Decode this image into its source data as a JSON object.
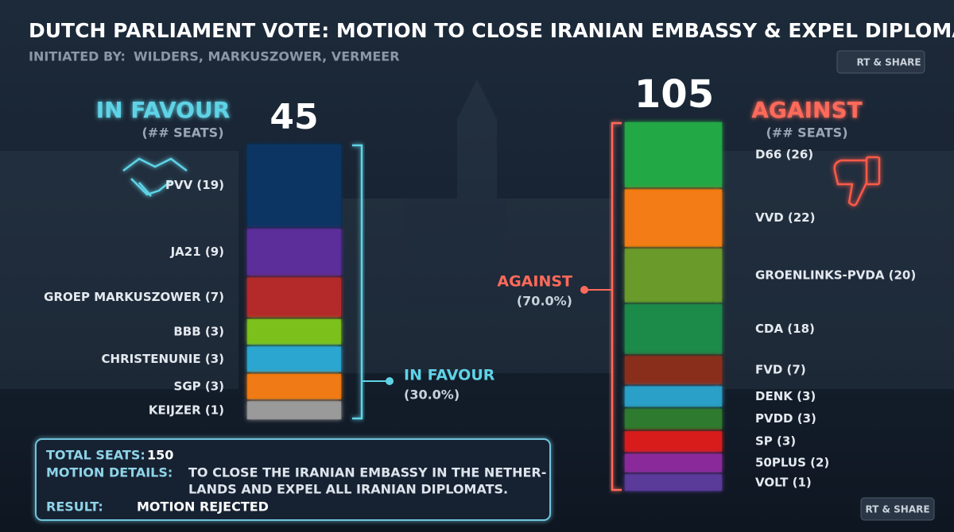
{
  "header": {
    "title": "DUTCH PARLIAMENT VOTE: MOTION TO CLOSE IRANIAN EMBASSY & EXPEL DIPLOMATS",
    "subtitle_label": "INITIATED BY:",
    "subtitle": "WILDERS, MARKUSZOWER, VERMEER",
    "share": "RT & SHARE"
  },
  "chart_data": {
    "type": "stacked-bar",
    "sides": [
      {
        "heading": "IN FAVOUR",
        "subheading": "(## SEATS)",
        "total": 45,
        "bracket_label": "IN FAVOUR",
        "bracket_share": "(30.0%)",
        "categories": [
          "PVV",
          "JA21",
          "GROEP MARKUSZOWER",
          "BBB",
          "CHRISTENUNIE",
          "SGP",
          "KEIJZER"
        ],
        "values": [
          19,
          9,
          7,
          3,
          3,
          3,
          1
        ],
        "value_labels": [
          "PVV (19)",
          "JA21 (9)",
          "GROEP MARKUSZOWER (7)",
          "BBB (3)",
          "CHRISTENUNIE (3)",
          "SGP (3)",
          "KEIJZER (1)"
        ],
        "colors": [
          "#0c3563",
          "#5b2d9a",
          "#b42a2a",
          "#7cc01f",
          "#2aa6d0",
          "#f07a12",
          "#9a9a9a"
        ]
      },
      {
        "heading": "AGAINST",
        "subheading": "(## SEATS)",
        "total": 105,
        "bracket_label": "AGAINST",
        "bracket_share": "(70.0%)",
        "categories": [
          "D66",
          "VVD",
          "GROENLINKS-PVDA",
          "CDA",
          "FVD",
          "DENK",
          "PVDD",
          "SP",
          "50PLUS",
          "VOLT"
        ],
        "values": [
          26,
          22,
          20,
          18,
          7,
          3,
          3,
          3,
          2,
          1
        ],
        "value_labels": [
          "D66 (26)",
          "VVD (22)",
          "GROENLINKS-PVDA (20)",
          "CDA (18)",
          "FVD (7)",
          "DENK (3)",
          "PVDD (3)",
          "SP (3)",
          "50PLUS (2)",
          "VOLT (1)"
        ],
        "colors": [
          "#22a845",
          "#f47c12",
          "#6a9a2c",
          "#1f8a4a",
          "#8a2e1e",
          "#2a9fc8",
          "#2e7a2e",
          "#d81e1e",
          "#8a2a9a",
          "#5a3a9a"
        ]
      }
    ]
  },
  "summary": {
    "total_label": "TOTAL SEATS:",
    "total": 150,
    "details_label": "MOTION DETAILS:",
    "details": [
      "TO CLOSE THE IRANIAN EMBASSY IN THE NETHER-",
      "LANDS AND EXPEL ALL IRANIAN DIPLOMATS."
    ],
    "result_label": "RESULT:",
    "result": "MOTION REJECTED"
  }
}
